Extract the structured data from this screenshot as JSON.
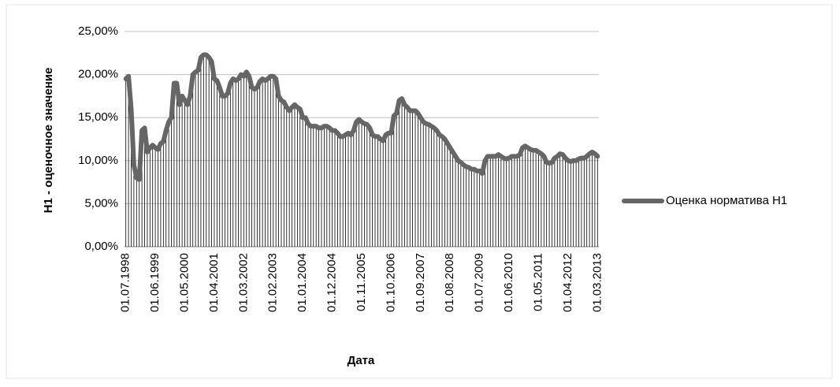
{
  "chart_data": {
    "type": "line",
    "ylabel": "Н1 - оценочное значение",
    "xlabel": "Дата",
    "categories": [
      "01.07.1998",
      null,
      null,
      null,
      null,
      null,
      null,
      null,
      null,
      null,
      null,
      "01.06.1999",
      null,
      null,
      null,
      null,
      null,
      null,
      null,
      null,
      null,
      null,
      "01.05.2000",
      null,
      null,
      null,
      null,
      null,
      null,
      null,
      null,
      null,
      null,
      "01.04.2001",
      null,
      null,
      null,
      null,
      null,
      null,
      null,
      null,
      null,
      null,
      "01.03.2002",
      null,
      null,
      null,
      null,
      null,
      null,
      null,
      null,
      null,
      null,
      "01.02.2003",
      null,
      null,
      null,
      null,
      null,
      null,
      null,
      null,
      null,
      null,
      "01.01.2004",
      null,
      null,
      null,
      null,
      null,
      null,
      null,
      null,
      null,
      null,
      "01.12.2004",
      null,
      null,
      null,
      null,
      null,
      null,
      null,
      null,
      null,
      null,
      "01.11.2005",
      null,
      null,
      null,
      null,
      null,
      null,
      null,
      null,
      null,
      null,
      "01.10.2006",
      null,
      null,
      null,
      null,
      null,
      null,
      null,
      null,
      null,
      null,
      "01.09.2007",
      null,
      null,
      null,
      null,
      null,
      null,
      null,
      null,
      null,
      null,
      "01.08.2008",
      null,
      null,
      null,
      null,
      null,
      null,
      null,
      null,
      null,
      null,
      "01.07.2009",
      null,
      null,
      null,
      null,
      null,
      null,
      null,
      null,
      null,
      null,
      "01.06.2010",
      null,
      null,
      null,
      null,
      null,
      null,
      null,
      null,
      null,
      null,
      "01.05.2011",
      null,
      null,
      null,
      null,
      null,
      null,
      null,
      null,
      null,
      null,
      "01.04.2012",
      null,
      null,
      null,
      null,
      null,
      null,
      null,
      null,
      null,
      null,
      "01.03.2013"
    ],
    "series": [
      {
        "name": "Оценка норматива Н1",
        "color": "#666666",
        "values": [
          19.5,
          19.8,
          16,
          9.5,
          8,
          7.8,
          13.5,
          13.8,
          11,
          11.5,
          11.8,
          11.5,
          11.3,
          12,
          12.2,
          13.5,
          14.5,
          15,
          19,
          19,
          16.5,
          17.5,
          17,
          16.5,
          17.5,
          20,
          20.3,
          20.5,
          22,
          22.3,
          22.3,
          22,
          21.5,
          19.5,
          19.3,
          18.5,
          17.5,
          17.5,
          17.8,
          19,
          19.5,
          19.3,
          19.5,
          20,
          19.8,
          20.3,
          19.8,
          18.5,
          18.3,
          18.5,
          19.2,
          19.5,
          19.3,
          19.5,
          19.8,
          19.8,
          19.5,
          17.5,
          17,
          16.8,
          16.2,
          15.8,
          16.2,
          16.5,
          16.2,
          16,
          15,
          15,
          14.3,
          14,
          14,
          14,
          13.8,
          13.8,
          14,
          14,
          13.8,
          13.5,
          13.5,
          13.2,
          12.8,
          12.8,
          13,
          13.2,
          13,
          13.5,
          14.5,
          14.8,
          14.5,
          14.3,
          14.2,
          13.8,
          13,
          12.8,
          12.8,
          12.5,
          12.3,
          13,
          13.2,
          13.2,
          15.2,
          15.5,
          17,
          17.2,
          16.5,
          16.2,
          15.8,
          15.8,
          15.8,
          15.5,
          15,
          14.5,
          14.3,
          14.2,
          14,
          13.8,
          13.5,
          13,
          12.8,
          12.5,
          12,
          11.5,
          11,
          10.5,
          10,
          9.8,
          9.5,
          9.3,
          9.2,
          9,
          9,
          8.8,
          8.8,
          8.5,
          10,
          10.5,
          10.5,
          10.5,
          10.5,
          10.7,
          10.5,
          10.3,
          10.2,
          10.3,
          10.5,
          10.5,
          10.5,
          10.7,
          11.5,
          11.7,
          11.5,
          11.3,
          11.2,
          11.2,
          11,
          10.8,
          10.5,
          9.8,
          9.7,
          9.8,
          10.3,
          10.5,
          10.8,
          10.7,
          10.3,
          10,
          9.9,
          10,
          10,
          10.2,
          10.3,
          10.3,
          10.5,
          10.8,
          11,
          10.8,
          10.5
        ]
      }
    ],
    "ylim": [
      0,
      25
    ],
    "yticks": [
      {
        "value": 0,
        "label": "0,00%"
      },
      {
        "value": 5,
        "label": "5,00%"
      },
      {
        "value": 10,
        "label": "10,00%"
      },
      {
        "value": 15,
        "label": "15,00%"
      },
      {
        "value": 20,
        "label": "20,00%"
      },
      {
        "value": 25,
        "label": "25,00%"
      }
    ],
    "grid": true,
    "drop_lines": true,
    "legend": "right"
  }
}
